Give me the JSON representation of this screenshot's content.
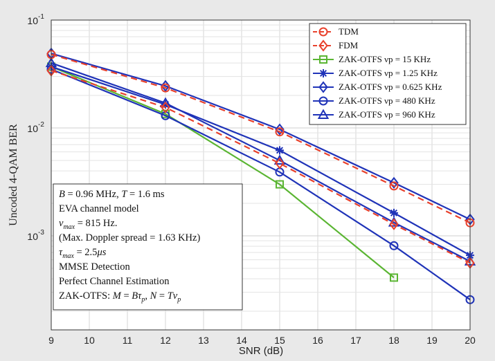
{
  "chart_data": {
    "type": "line",
    "xlabel": "SNR (dB)",
    "ylabel": "Uncoded 4-QAM BER",
    "x_ticks": [
      9,
      10,
      11,
      12,
      13,
      14,
      15,
      16,
      17,
      18,
      19,
      20
    ],
    "xlim": [
      9,
      20
    ],
    "ylim": [
      0.0002,
      0.1
    ],
    "y_scale": "log",
    "y_tick_labels": [
      {
        "value": 0.1,
        "base": "10",
        "exp": "-1"
      },
      {
        "value": 0.01,
        "base": "10",
        "exp": "-2"
      },
      {
        "value": 0.001,
        "base": "10",
        "exp": "-3"
      }
    ],
    "grid": true,
    "legend_position": "top-right",
    "series": [
      {
        "name": "TDM",
        "color": "#e8412c",
        "dashed": true,
        "marker": "circle",
        "x": [
          9,
          12,
          15,
          18,
          20
        ],
        "y": [
          0.048,
          0.0235,
          0.0092,
          0.0029,
          0.00132
        ]
      },
      {
        "name": "FDM",
        "color": "#e8412c",
        "dashed": true,
        "marker": "diamond",
        "x": [
          9,
          12,
          15,
          18,
          20
        ],
        "y": [
          0.034,
          0.0155,
          0.0047,
          0.00128,
          0.00056
        ]
      },
      {
        "name": "ZAK-OTFS νp = 15 KHz",
        "color": "#5ab532",
        "dashed": false,
        "marker": "square",
        "x": [
          9,
          12,
          15,
          18
        ],
        "y": [
          0.037,
          0.0135,
          0.003,
          0.00041
        ]
      },
      {
        "name": "ZAK-OTFS νp = 1.25 KHz",
        "color": "#1f33b8",
        "dashed": false,
        "marker": "star",
        "x": [
          9,
          12,
          15,
          18,
          20
        ],
        "y": [
          0.037,
          0.0165,
          0.0062,
          0.00163,
          0.00066
        ]
      },
      {
        "name": "ZAK-OTFS νp = 0.625 KHz",
        "color": "#1f33b8",
        "dashed": false,
        "marker": "diamond",
        "x": [
          9,
          12,
          15,
          18,
          20
        ],
        "y": [
          0.049,
          0.0245,
          0.0097,
          0.0031,
          0.00142
        ]
      },
      {
        "name": "ZAK-OTFS νp = 480 KHz",
        "color": "#1f33b8",
        "dashed": false,
        "marker": "circle",
        "x": [
          9,
          12,
          15,
          18,
          20
        ],
        "y": [
          0.035,
          0.013,
          0.0039,
          0.00081,
          0.000256
        ]
      },
      {
        "name": "ZAK-OTFS νp = 960 KHz",
        "color": "#1f33b8",
        "dashed": false,
        "marker": "triangle",
        "x": [
          9,
          12,
          15,
          18,
          20
        ],
        "y": [
          0.04,
          0.017,
          0.005,
          0.00133,
          0.00058
        ]
      }
    ],
    "legend_entries": [
      "TDM",
      "FDM",
      "ZAK-OTFS νp = 15 KHz",
      "ZAK-OTFS νp = 1.25 KHz",
      "ZAK-OTFS νp = 0.625 KHz",
      "ZAK-OTFS νp = 480 KHz",
      "ZAK-OTFS νp = 960 KHz"
    ],
    "annotation_lines": [
      "B = 0.96 MHz, T = 1.6 ms",
      "EVA channel model",
      "νmax = 815 Hz.",
      "(Max. Doppler spread = 1.63 KHz)",
      "τmax = 2.5μs",
      "MMSE Detection",
      "Perfect Channel Estimation",
      "ZAK-OTFS: M = Bτp, N = Tνp"
    ]
  }
}
